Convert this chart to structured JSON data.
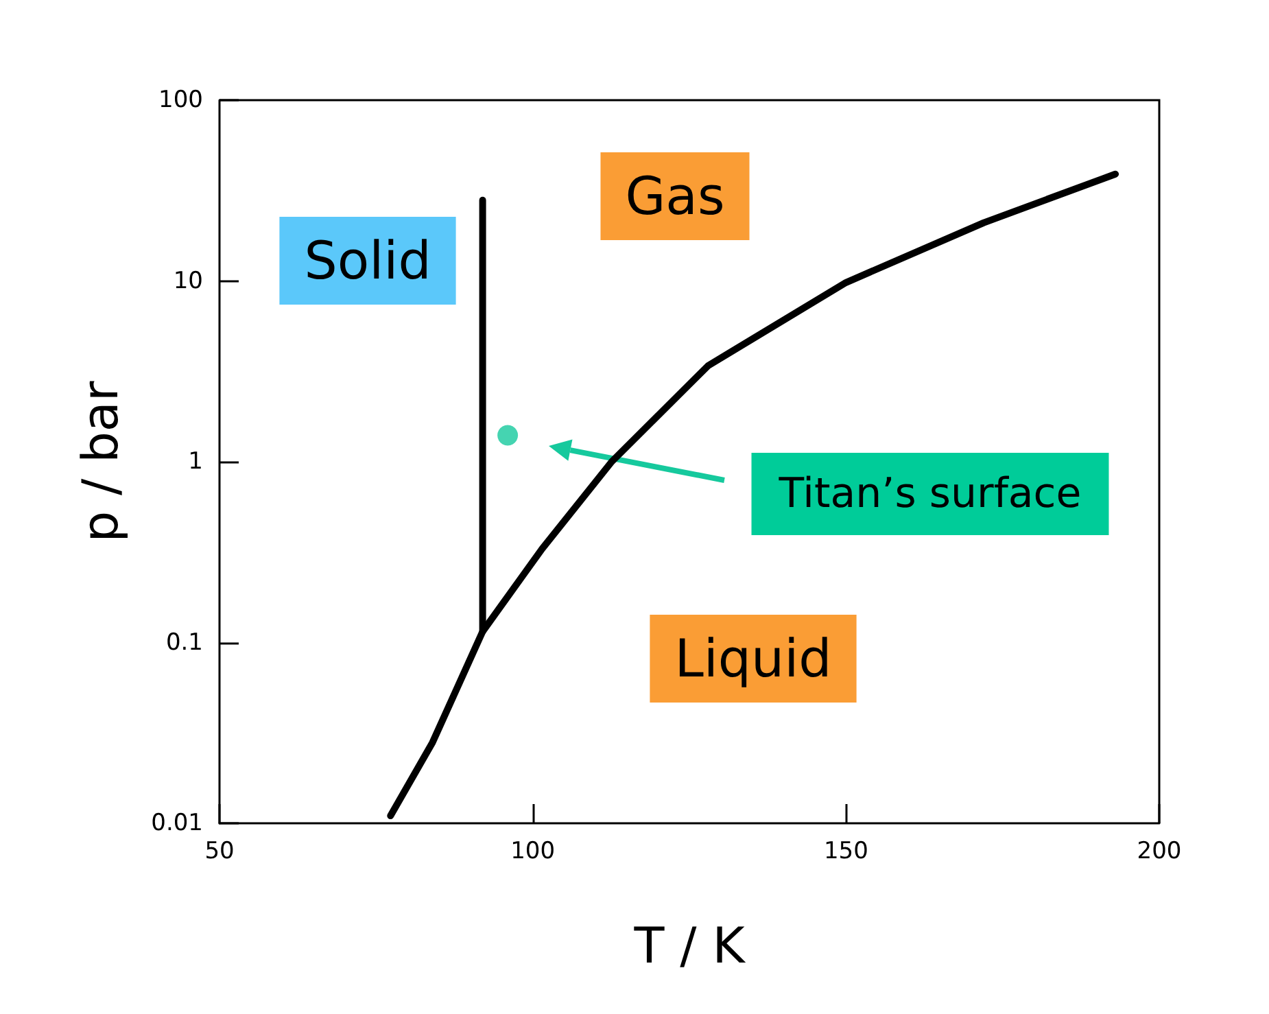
{
  "chart_data": {
    "type": "line",
    "xlabel": "T / K",
    "ylabel": "p / bar",
    "xlim": [
      50,
      200
    ],
    "xticks": [
      50,
      100,
      150,
      200
    ],
    "ylim": [
      0.01,
      100
    ],
    "yticks": [
      0.01,
      0.1,
      1,
      10,
      100
    ],
    "log": "y",
    "grid": false,
    "marker": "none",
    "line_style": "solid",
    "series": [
      {
        "color": "#000000",
        "x": [
          77.3,
          84,
          92,
          101.5,
          112.6,
          128,
          150,
          172,
          193
        ],
        "values": [
          0.011,
          0.028,
          0.115,
          0.33,
          1.0,
          3.4,
          9.8,
          21,
          39
        ]
      },
      {
        "color": "#000000",
        "x": [
          92,
          92
        ],
        "values": [
          0.115,
          28
        ]
      },
      {
        "type": "scatter",
        "marker": "circle",
        "color": "#16c99d",
        "x": [
          96
        ],
        "values": [
          1.4
        ]
      }
    ],
    "annotations": [
      "Solid",
      "Gas",
      "Liquid",
      "Titan’s surface"
    ]
  }
}
